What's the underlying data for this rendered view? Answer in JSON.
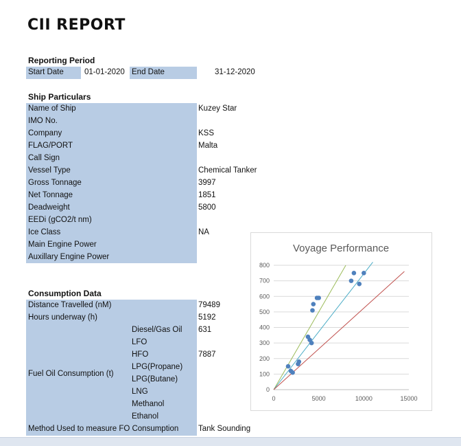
{
  "title": "CII REPORT",
  "reporting": {
    "heading": "Reporting Period",
    "start_label": "Start Date",
    "start_value": "01-01-2020",
    "end_label": "End Date",
    "end_value": "31-12-2020"
  },
  "particulars": {
    "heading": "Ship Particulars",
    "rows": [
      {
        "label": "Name of Ship",
        "value": "Kuzey Star"
      },
      {
        "label": "IMO No.",
        "value": ""
      },
      {
        "label": "Company",
        "value": "KSS"
      },
      {
        "label": "FLAG/PORT",
        "value": "Malta"
      },
      {
        "label": "Call Sign",
        "value": ""
      },
      {
        "label": "Vessel Type",
        "value": "Chemical Tanker"
      },
      {
        "label": "Gross Tonnage",
        "value": "3997"
      },
      {
        "label": "Net Tonnage",
        "value": "1851"
      },
      {
        "label": "Deadweight",
        "value": "5800"
      },
      {
        "label": "EEDi (gCO2/t nm)",
        "value": ""
      },
      {
        "label": "Ice Class",
        "value": "NA"
      },
      {
        "label": "Main Engine Power",
        "value": ""
      },
      {
        "label": "Auxillary Engine Power",
        "value": ""
      }
    ]
  },
  "consumption": {
    "heading": "Consumption Data",
    "distance_label": "Distance Travelled (nM)",
    "distance_value": "79489",
    "hours_label": "Hours underway (h)",
    "hours_value": "5192",
    "fuel_group_label": "Fuel Oil Consumption (t)",
    "fuels": [
      {
        "label": "Diesel/Gas Oil",
        "value": "631"
      },
      {
        "label": "LFO",
        "value": ""
      },
      {
        "label": "HFO",
        "value": "7887"
      },
      {
        "label": "LPG(Propane)",
        "value": ""
      },
      {
        "label": "LPG(Butane)",
        "value": ""
      },
      {
        "label": "LNG",
        "value": ""
      },
      {
        "label": "Methanol",
        "value": ""
      },
      {
        "label": "Ethanol",
        "value": ""
      }
    ],
    "method_label": "Method Used to measure FO Consumption",
    "method_value": "Tank Sounding"
  },
  "chart_data": {
    "type": "scatter",
    "title": "Voyage Performance",
    "xlim": [
      0,
      15000
    ],
    "ylim": [
      0,
      800
    ],
    "x_ticks": [
      "0",
      "5000",
      "10000",
      "15000"
    ],
    "y_ticks": [
      "0",
      "100",
      "200",
      "300",
      "400",
      "500",
      "600",
      "700",
      "800"
    ],
    "grid": true,
    "legend": "none",
    "points": [
      {
        "x": 1600,
        "y": 150
      },
      {
        "x": 1900,
        "y": 120
      },
      {
        "x": 2100,
        "y": 110
      },
      {
        "x": 2700,
        "y": 165
      },
      {
        "x": 2800,
        "y": 180
      },
      {
        "x": 3800,
        "y": 340
      },
      {
        "x": 4000,
        "y": 320
      },
      {
        "x": 4200,
        "y": 300
      },
      {
        "x": 4300,
        "y": 510
      },
      {
        "x": 4400,
        "y": 550
      },
      {
        "x": 4800,
        "y": 590
      },
      {
        "x": 5000,
        "y": 590
      },
      {
        "x": 8600,
        "y": 700
      },
      {
        "x": 8900,
        "y": 750
      },
      {
        "x": 9500,
        "y": 680
      },
      {
        "x": 10000,
        "y": 750
      }
    ],
    "lines": [
      {
        "color": "#9bbb59",
        "x": [
          0,
          8000
        ],
        "y": [
          0,
          800
        ]
      },
      {
        "color": "#4bacc6",
        "x": [
          0,
          11000
        ],
        "y": [
          0,
          820
        ]
      },
      {
        "color": "#c0504d",
        "x": [
          0,
          14500
        ],
        "y": [
          0,
          760
        ]
      }
    ],
    "point_color": "#4f81bd"
  }
}
